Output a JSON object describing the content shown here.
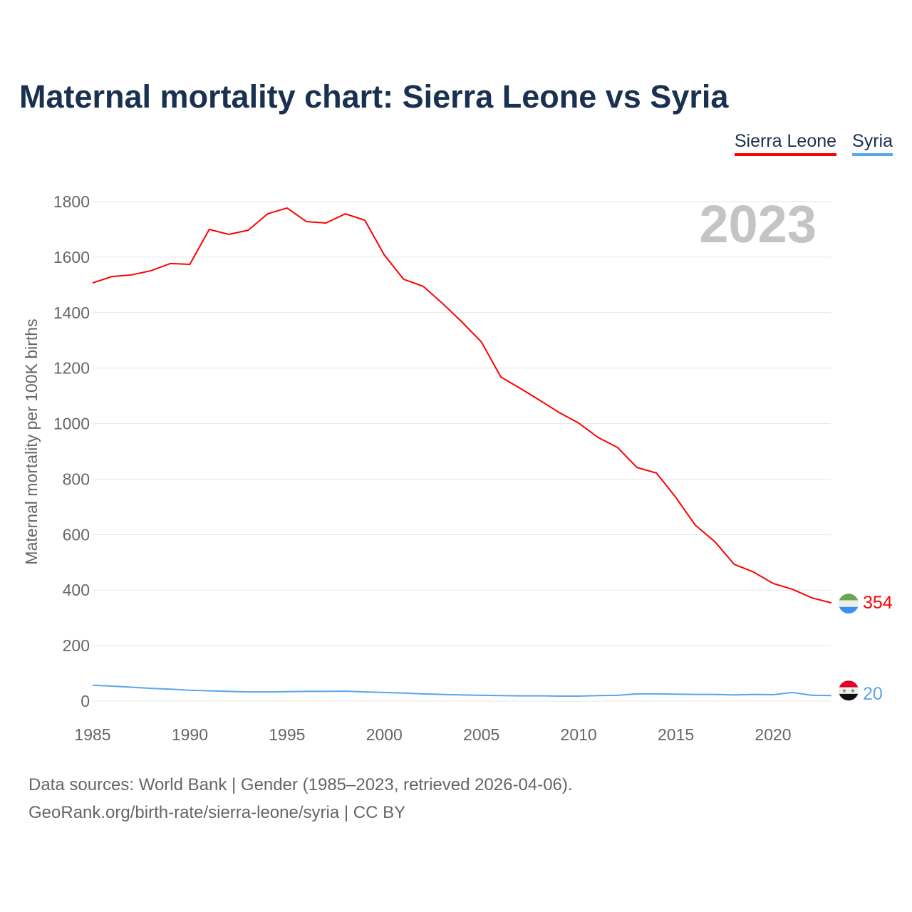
{
  "title": "Maternal mortality chart: Sierra Leone vs Syria",
  "footer": {
    "line1": "Data sources: World Bank | Gender (1985–2023, retrieved 2026-04-06).",
    "line2": "GeoRank.org/birth-rate/sierra-leone/syria | CC BY"
  },
  "chart_data": {
    "type": "line",
    "title": "Maternal mortality chart: Sierra Leone vs Syria",
    "ylabel": "Maternal mortality per 100K births",
    "xlabel": "",
    "year_label": "2023",
    "xlim": [
      1985,
      2023
    ],
    "ylim": [
      0,
      1800
    ],
    "xticks": [
      1985,
      1990,
      1995,
      2000,
      2005,
      2010,
      2015,
      2020
    ],
    "yticks": [
      0,
      200,
      400,
      600,
      800,
      1000,
      1200,
      1400,
      1600,
      1800
    ],
    "grid": true,
    "legend": "top-right",
    "x": [
      1985,
      1986,
      1987,
      1988,
      1989,
      1990,
      1991,
      1992,
      1993,
      1994,
      1995,
      1996,
      1997,
      1998,
      1999,
      2000,
      2001,
      2002,
      2003,
      2004,
      2005,
      2006,
      2007,
      2008,
      2009,
      2010,
      2011,
      2012,
      2013,
      2014,
      2015,
      2016,
      2017,
      2018,
      2019,
      2020,
      2021,
      2022,
      2023
    ],
    "series": [
      {
        "name": "Sierra Leone",
        "color": "#ff0000",
        "end_label": "354",
        "values": [
          1507,
          1530,
          1536,
          1551,
          1577,
          1574,
          1700,
          1682,
          1697,
          1756,
          1777,
          1728,
          1723,
          1756,
          1733,
          1608,
          1520,
          1495,
          1433,
          1366,
          1294,
          1168,
          1127,
          1084,
          1040,
          1002,
          950,
          914,
          842,
          822,
          734,
          634,
          575,
          493,
          465,
          424,
          403,
          372,
          354
        ]
      },
      {
        "name": "Syria",
        "color": "#5aa5ec",
        "end_label": "20",
        "values": [
          57,
          54,
          50,
          46,
          43,
          39,
          37,
          35,
          33,
          33,
          34,
          35,
          35,
          36,
          33,
          31,
          29,
          26,
          24,
          22,
          21,
          20,
          19,
          19,
          18,
          18,
          20,
          21,
          26,
          26,
          25,
          24,
          24,
          22,
          24,
          23,
          31,
          21,
          20
        ]
      }
    ]
  }
}
